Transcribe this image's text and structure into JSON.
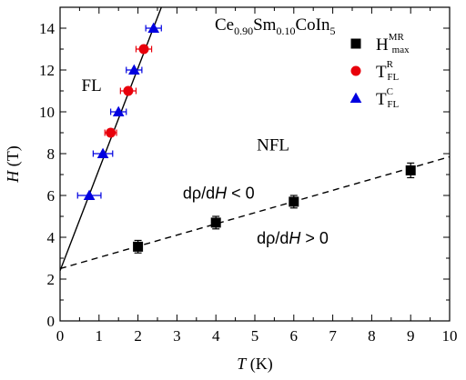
{
  "chart_data": {
    "type": "scatter",
    "xlabel": {
      "italic": "T",
      "rest": " (K)"
    },
    "ylabel": {
      "italic": "H",
      "rest": " (T)"
    },
    "xlim": [
      0,
      10
    ],
    "ylim": [
      0,
      15
    ],
    "xticks": [
      0,
      1,
      2,
      3,
      4,
      5,
      6,
      7,
      8,
      9,
      10
    ],
    "yticks": [
      0,
      2,
      4,
      6,
      8,
      10,
      12,
      14
    ],
    "grid": false,
    "legend_position": "top-right",
    "compound": {
      "parts": [
        {
          "t": "Ce",
          "sub": false
        },
        {
          "t": "0.90",
          "sub": true
        },
        {
          "t": "Sm",
          "sub": false
        },
        {
          "t": "0.10",
          "sub": true
        },
        {
          "t": "CoIn",
          "sub": false
        },
        {
          "t": "5",
          "sub": true
        }
      ]
    },
    "series": [
      {
        "name": {
          "main": "H",
          "sup": "MR",
          "sub": "max"
        },
        "marker": "square",
        "color": "#000000",
        "points": [
          {
            "x": 2.0,
            "y": 3.55,
            "yerr": 0.3
          },
          {
            "x": 4.0,
            "y": 4.7,
            "yerr": 0.3
          },
          {
            "x": 6.0,
            "y": 5.7,
            "yerr": 0.3
          },
          {
            "x": 9.0,
            "y": 7.2,
            "yerr": 0.35
          }
        ]
      },
      {
        "name": {
          "main": "T",
          "sup": "R",
          "sub": "FL"
        },
        "marker": "circle",
        "color": "#e8000b",
        "points": [
          {
            "x": 1.3,
            "y": 9.0,
            "xerr": 0.15
          },
          {
            "x": 1.75,
            "y": 11.0,
            "xerr": 0.2
          },
          {
            "x": 2.15,
            "y": 13.0,
            "xerr": 0.2
          }
        ]
      },
      {
        "name": {
          "main": "T",
          "sup": "C",
          "sub": "FL"
        },
        "marker": "triangle",
        "color": "#0000e0",
        "points": [
          {
            "x": 0.75,
            "y": 6.0,
            "xerr": 0.3
          },
          {
            "x": 1.1,
            "y": 8.0,
            "xerr": 0.25
          },
          {
            "x": 1.5,
            "y": 10.0,
            "xerr": 0.2
          },
          {
            "x": 1.9,
            "y": 12.0,
            "xerr": 0.2
          },
          {
            "x": 2.4,
            "y": 14.0,
            "xerr": 0.2
          }
        ]
      }
    ],
    "lines": [
      {
        "style": "solid",
        "color": "#000000",
        "from": [
          0,
          2.4
        ],
        "to": [
          2.6,
          15.0
        ]
      },
      {
        "style": "dashed",
        "color": "#000000",
        "from": [
          0,
          2.5
        ],
        "to": [
          10,
          7.85
        ]
      }
    ],
    "annotations": [
      {
        "text": "FL",
        "x": 0.55,
        "y": 11.0,
        "kind": "plain"
      },
      {
        "text": "NFL",
        "x": 5.05,
        "y": 8.15,
        "kind": "plain"
      },
      {
        "text": "dρ/d",
        "italic": "H",
        "after": " < 0",
        "x": 3.15,
        "y": 5.85,
        "kind": "sans"
      },
      {
        "text": "dρ/d",
        "italic": "H",
        "after": " > 0",
        "x": 5.05,
        "y": 3.7,
        "kind": "sans"
      }
    ]
  }
}
